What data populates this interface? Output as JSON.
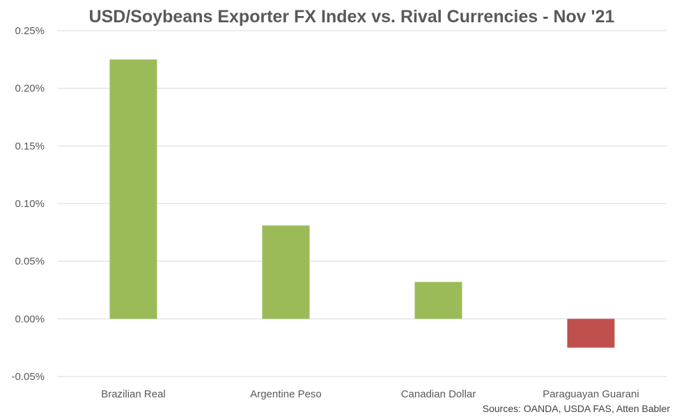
{
  "chart_data": {
    "type": "bar",
    "title": "USD/Soybeans Exporter FX Index vs. Rival Currencies - Nov '21",
    "categories": [
      "Brazilian Real",
      "Argentine Peso",
      "Canadian Dollar",
      "Paraguayan Guarani"
    ],
    "values": [
      0.225,
      0.081,
      0.032,
      -0.025
    ],
    "value_unit": "%",
    "ylim": [
      -0.05,
      0.25
    ],
    "yticks": [
      0.25,
      0.2,
      0.15,
      0.1,
      0.05,
      0.0,
      -0.05
    ],
    "ytick_labels": [
      "0.25%",
      "0.20%",
      "0.15%",
      "0.10%",
      "0.05%",
      "0.00%",
      "-0.05%"
    ],
    "xlabel": "",
    "ylabel": "",
    "grid": true,
    "legend": "none",
    "colors": {
      "positive": "#9BBB59",
      "negative": "#C0504D",
      "grid": "#D9D9D9",
      "text": "#595959"
    }
  },
  "source_note": "Sources: OANDA, USDA FAS, Atten Babler"
}
